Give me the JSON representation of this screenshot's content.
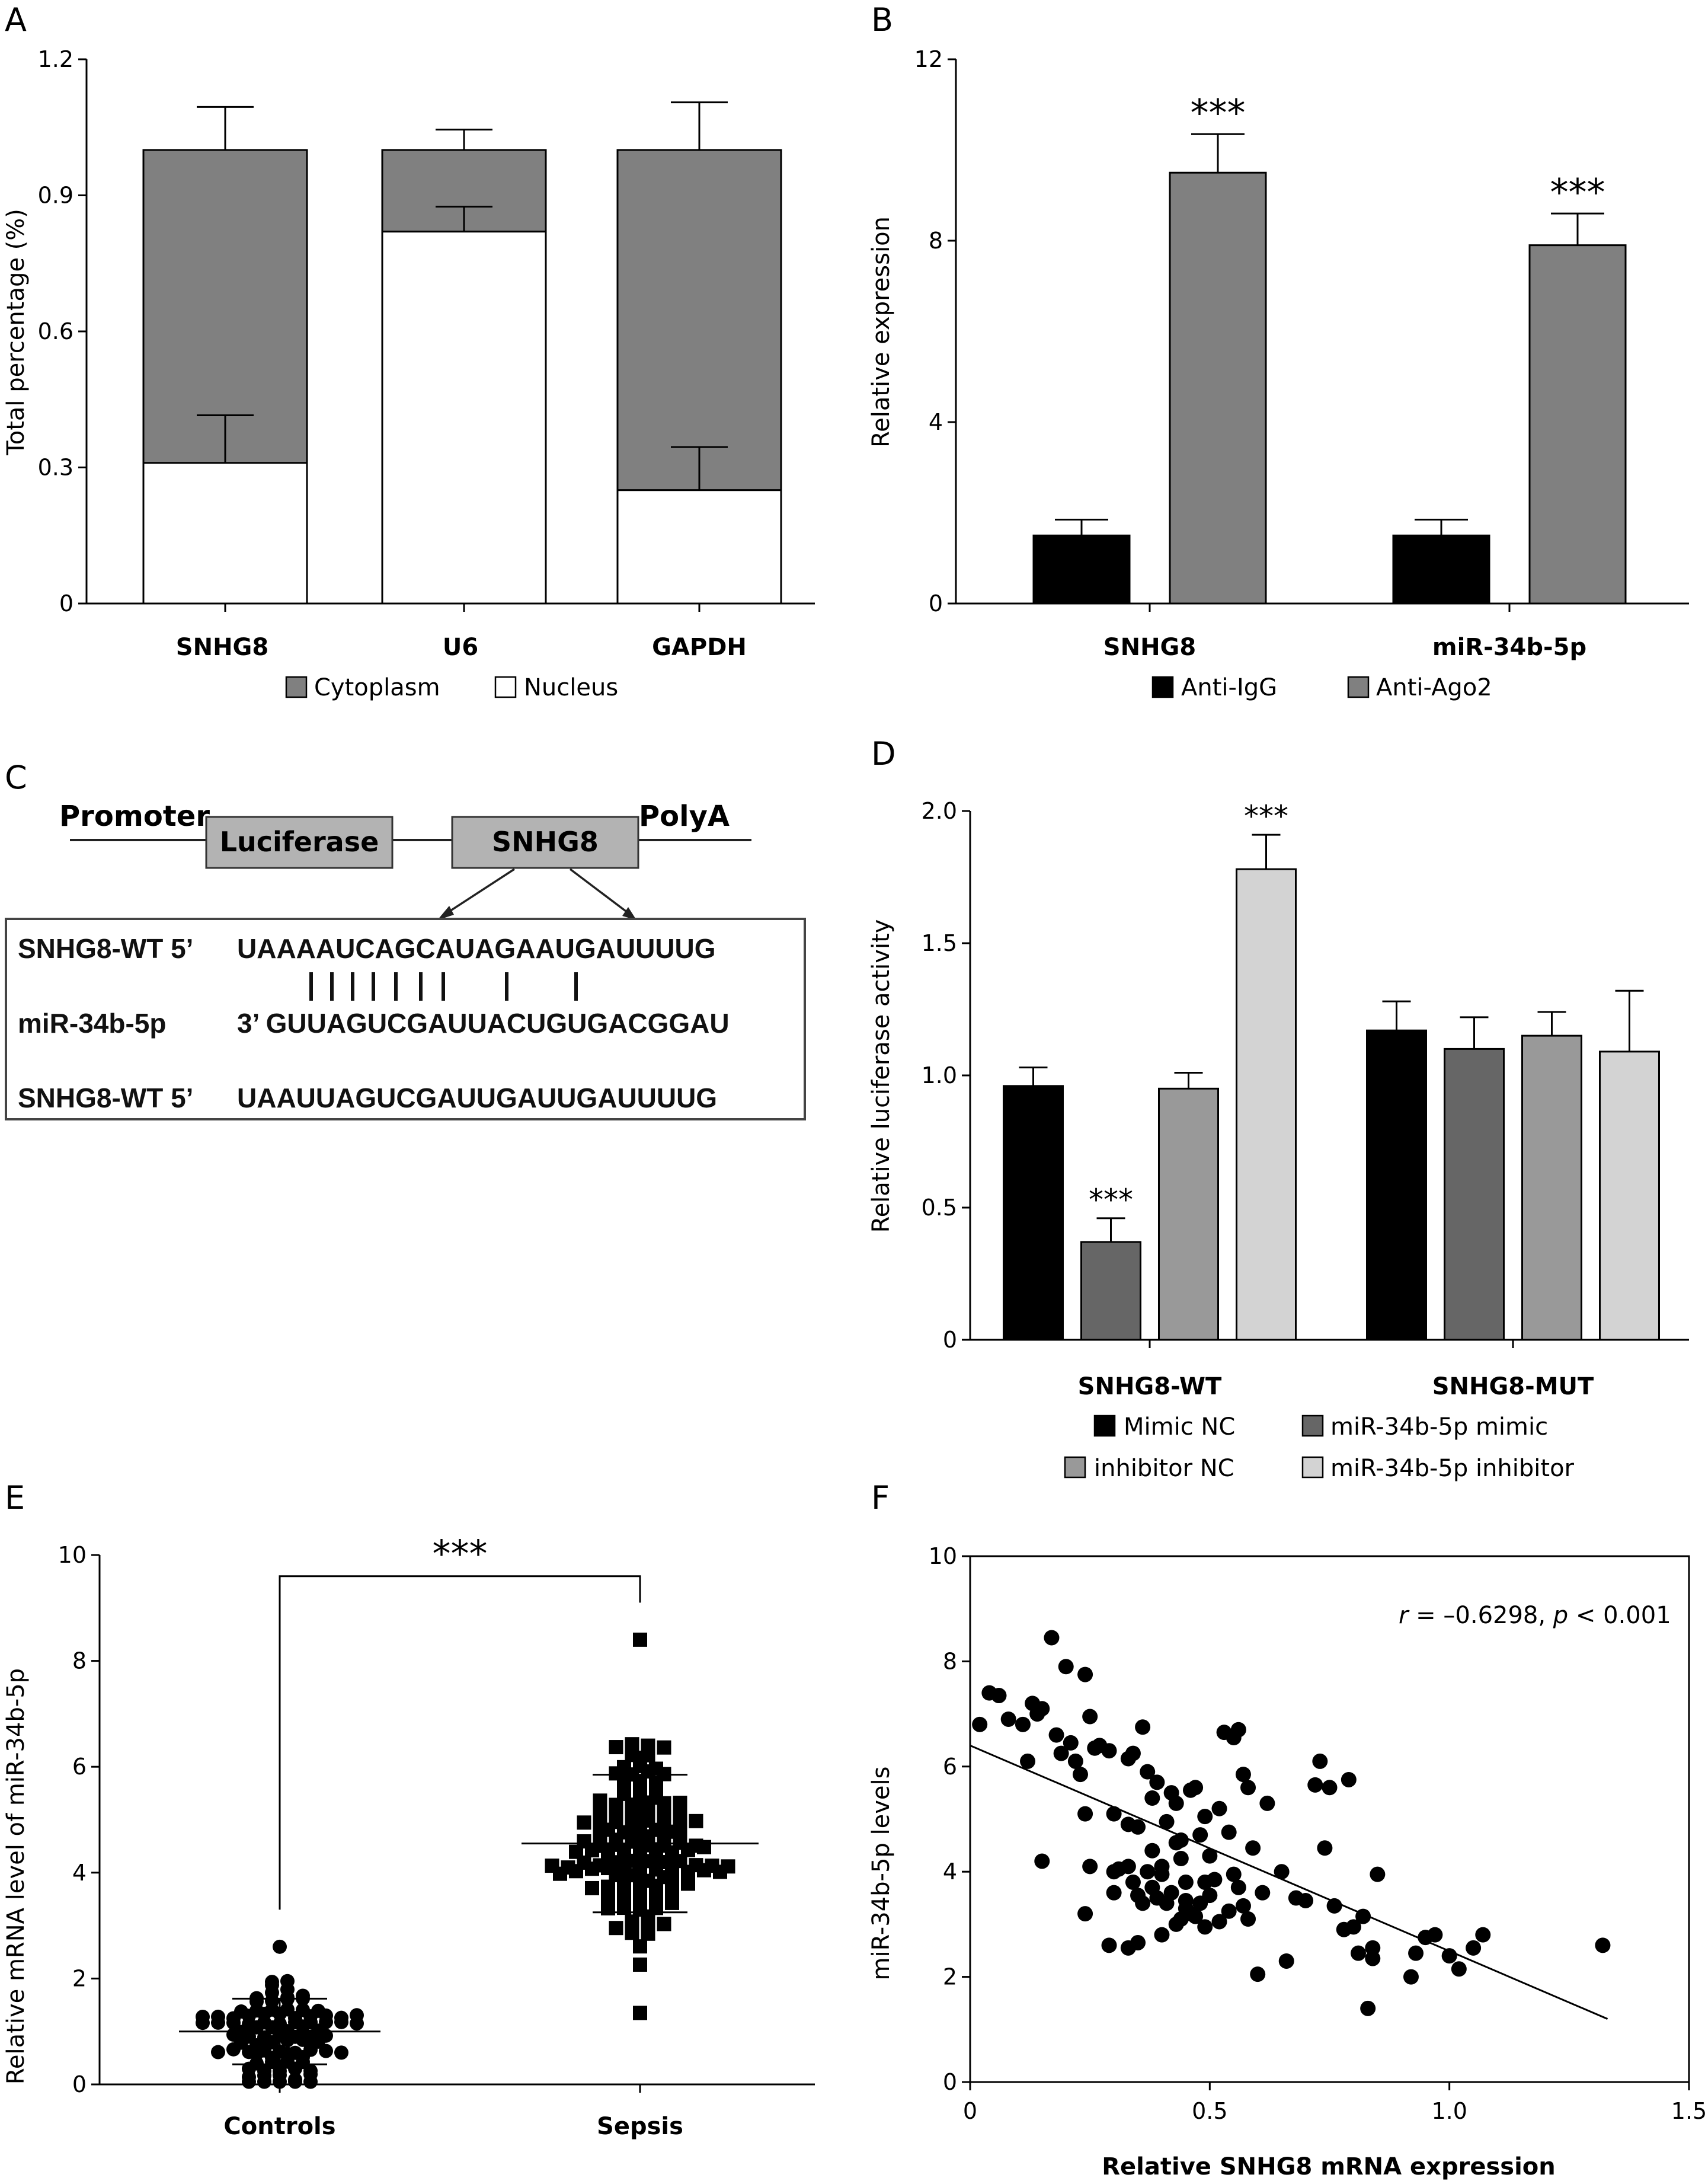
{
  "chart_data": [
    {
      "panel": "A",
      "type": "bar",
      "stacked": true,
      "categories": [
        "SNHG8",
        "U6",
        "GAPDH"
      ],
      "ylabel": "Total percentage (%)",
      "ylim": [
        0,
        1.2
      ],
      "yticks": [
        "0",
        "0.3",
        "0.6",
        "0.9",
        "1.2"
      ],
      "series": [
        {
          "name": "Cytoplasm",
          "color": "#808080",
          "values": [
            0.69,
            0.18,
            0.75
          ],
          "errors": [
            0.095,
            0.045,
            0.105
          ]
        },
        {
          "name": "Nucleus",
          "color": "#ffffff",
          "values": [
            0.31,
            0.82,
            0.25
          ],
          "errors": [
            0.105,
            0.055,
            0.095
          ]
        }
      ],
      "legend_position": "bottom"
    },
    {
      "panel": "B",
      "type": "bar",
      "categories": [
        "SNHG8",
        "miR-34b-5p"
      ],
      "ylabel": "Relative expression",
      "ylim": [
        0,
        12
      ],
      "yticks": [
        "0",
        "4",
        "8",
        "12"
      ],
      "series": [
        {
          "name": "Anti-IgG",
          "color": "#000000",
          "values": [
            1.5,
            1.5
          ],
          "errors": [
            0.35,
            0.35
          ]
        },
        {
          "name": "Anti-Ago2",
          "color": "#808080",
          "values": [
            9.5,
            7.9
          ],
          "errors": [
            0.85,
            0.7
          ]
        }
      ],
      "annotations": [
        "***",
        "***"
      ],
      "legend_position": "bottom"
    },
    {
      "panel": "D",
      "type": "bar",
      "categories": [
        "SNHG8-WT",
        "SNHG8-MUT"
      ],
      "ylabel": "Relative luciferase activity",
      "ylim": [
        0,
        2.0
      ],
      "yticks": [
        "0",
        "0.5",
        "1.0",
        "1.5",
        "2.0"
      ],
      "series": [
        {
          "name": "Mimic NC",
          "color": "#000000",
          "values": [
            0.96,
            1.17
          ],
          "errors": [
            0.07,
            0.11
          ]
        },
        {
          "name": "miR-34b-5p mimic",
          "color": "#666666",
          "values": [
            0.37,
            1.1
          ],
          "errors": [
            0.09,
            0.12
          ]
        },
        {
          "name": "inhibitor NC",
          "color": "#999999",
          "values": [
            0.95,
            1.15
          ],
          "errors": [
            0.06,
            0.09
          ]
        },
        {
          "name": "miR-34b-5p inhibitor",
          "color": "#d3d3d3",
          "values": [
            1.78,
            1.09
          ],
          "errors": [
            0.13,
            0.23
          ]
        }
      ],
      "annotations": [
        "***",
        "***"
      ],
      "legend_position": "bottom"
    },
    {
      "panel": "E",
      "type": "scatter",
      "categories": [
        "Controls",
        "Sepsis"
      ],
      "ylabel": "Relative mRNA level of miR-34b-5p",
      "ylim": [
        0,
        10
      ],
      "yticks": [
        "0",
        "2",
        "4",
        "6",
        "8",
        "10"
      ],
      "groups": [
        {
          "name": "Controls",
          "n": 90,
          "mean": 1.0,
          "sd": 0.62,
          "min": 0.05,
          "max": 2.6,
          "marker": "circle"
        },
        {
          "name": "Sepsis",
          "n": 140,
          "mean": 4.55,
          "sd": 1.3,
          "min": 1.35,
          "max": 8.4,
          "marker": "square"
        }
      ],
      "annotations": [
        "***"
      ]
    },
    {
      "panel": "F",
      "type": "scatter",
      "xlabel": "Relative SNHG8 mRNA expression",
      "ylabel": "miR-34b-5p levels",
      "xlim": [
        0,
        1.5
      ],
      "ylim": [
        0,
        10
      ],
      "xticks": [
        "0",
        "0.5",
        "1.0",
        "1.5"
      ],
      "yticks": [
        "0",
        "2",
        "4",
        "6",
        "8",
        "10"
      ],
      "points": [
        [
          0.02,
          6.8
        ],
        [
          0.04,
          7.4
        ],
        [
          0.06,
          7.35
        ],
        [
          0.08,
          6.9
        ],
        [
          0.11,
          6.8
        ],
        [
          0.12,
          6.1
        ],
        [
          0.13,
          7.2
        ],
        [
          0.14,
          7.0
        ],
        [
          0.15,
          7.1
        ],
        [
          0.17,
          8.45
        ],
        [
          0.18,
          6.6
        ],
        [
          0.19,
          6.25
        ],
        [
          0.2,
          7.9
        ],
        [
          0.21,
          6.45
        ],
        [
          0.22,
          6.1
        ],
        [
          0.23,
          5.85
        ],
        [
          0.24,
          7.75
        ],
        [
          0.25,
          6.95
        ],
        [
          0.26,
          6.35
        ],
        [
          0.27,
          6.4
        ],
        [
          0.29,
          6.3
        ],
        [
          0.3,
          5.1
        ],
        [
          0.24,
          5.1
        ],
        [
          0.33,
          6.15
        ],
        [
          0.34,
          6.25
        ],
        [
          0.35,
          4.85
        ],
        [
          0.36,
          6.75
        ],
        [
          0.37,
          5.9
        ],
        [
          0.38,
          5.4
        ],
        [
          0.39,
          5.7
        ],
        [
          0.4,
          4.1
        ],
        [
          0.41,
          4.95
        ],
        [
          0.42,
          5.5
        ],
        [
          0.43,
          5.3
        ],
        [
          0.44,
          4.6
        ],
        [
          0.45,
          3.8
        ],
        [
          0.46,
          5.55
        ],
        [
          0.47,
          5.6
        ],
        [
          0.48,
          4.7
        ],
        [
          0.49,
          5.05
        ],
        [
          0.5,
          4.3
        ],
        [
          0.52,
          5.2
        ],
        [
          0.53,
          6.65
        ],
        [
          0.54,
          4.75
        ],
        [
          0.55,
          6.55
        ],
        [
          0.56,
          6.7
        ],
        [
          0.57,
          5.85
        ],
        [
          0.58,
          5.6
        ],
        [
          0.59,
          4.45
        ],
        [
          0.3,
          4.0
        ],
        [
          0.31,
          4.05
        ],
        [
          0.33,
          4.1
        ],
        [
          0.34,
          3.8
        ],
        [
          0.35,
          3.55
        ],
        [
          0.36,
          3.4
        ],
        [
          0.37,
          4.0
        ],
        [
          0.38,
          3.7
        ],
        [
          0.39,
          3.5
        ],
        [
          0.4,
          3.95
        ],
        [
          0.41,
          3.4
        ],
        [
          0.42,
          3.6
        ],
        [
          0.43,
          3.0
        ],
        [
          0.44,
          3.1
        ],
        [
          0.45,
          3.3
        ],
        [
          0.46,
          3.2
        ],
        [
          0.47,
          3.15
        ],
        [
          0.48,
          3.4
        ],
        [
          0.49,
          3.8
        ],
        [
          0.5,
          3.55
        ],
        [
          0.52,
          3.05
        ],
        [
          0.54,
          3.25
        ],
        [
          0.56,
          3.7
        ],
        [
          0.57,
          3.35
        ],
        [
          0.58,
          3.1
        ],
        [
          0.6,
          2.05
        ],
        [
          0.62,
          5.3
        ],
        [
          0.65,
          4.0
        ],
        [
          0.68,
          3.5
        ],
        [
          0.7,
          3.45
        ],
        [
          0.72,
          5.65
        ],
        [
          0.73,
          6.1
        ],
        [
          0.74,
          4.45
        ],
        [
          0.75,
          5.6
        ],
        [
          0.76,
          3.35
        ],
        [
          0.78,
          2.9
        ],
        [
          0.79,
          5.75
        ],
        [
          0.8,
          2.95
        ],
        [
          0.81,
          2.45
        ],
        [
          0.82,
          3.15
        ],
        [
          0.83,
          1.4
        ],
        [
          0.84,
          2.55
        ],
        [
          0.85,
          3.95
        ],
        [
          0.84,
          2.35
        ],
        [
          0.93,
          2.45
        ],
        [
          0.95,
          2.75
        ],
        [
          0.97,
          2.8
        ],
        [
          1.0,
          2.4
        ],
        [
          1.02,
          2.15
        ],
        [
          1.05,
          2.55
        ],
        [
          1.07,
          2.8
        ],
        [
          0.29,
          2.6
        ],
        [
          0.33,
          2.55
        ],
        [
          0.35,
          2.65
        ],
        [
          0.4,
          2.8
        ],
        [
          0.24,
          3.2
        ],
        [
          0.15,
          4.2
        ],
        [
          0.25,
          4.1
        ],
        [
          0.3,
          3.6
        ],
        [
          0.45,
          3.45
        ],
        [
          0.49,
          2.95
        ],
        [
          0.66,
          2.3
        ],
        [
          1.32,
          2.6
        ],
        [
          0.92,
          2.0
        ],
        [
          0.44,
          4.25
        ],
        [
          0.38,
          4.4
        ],
        [
          0.51,
          3.85
        ],
        [
          0.43,
          4.55
        ],
        [
          0.33,
          4.9
        ],
        [
          0.55,
          3.95
        ],
        [
          0.61,
          3.6
        ]
      ],
      "fit_line": {
        "x": [
          0,
          1.33
        ],
        "y": [
          6.4,
          1.2
        ]
      },
      "annotation_text": {
        "r": "r",
        "r_value": " = –0.6298, ",
        "p": "p",
        "p_value": " < 0.001"
      }
    }
  ],
  "panels": {
    "A": {
      "letter": "A",
      "xticks": [
        "SNHG8",
        "U6",
        "GAPDH"
      ],
      "legend": [
        "Cytoplasm",
        "Nucleus"
      ]
    },
    "B": {
      "letter": "B",
      "xticks": [
        "SNHG8",
        "miR-34b-5p"
      ],
      "legend": [
        "Anti-IgG",
        "Anti-Ago2"
      ]
    },
    "C": {
      "letter": "C",
      "promoter": "Promoter",
      "luciferase": "Luciferase",
      "snhg8": "SNHG8",
      "polya": "PolyA",
      "row1_label": "SNHG8-WT 5’",
      "row1_seq": "UAAAAUCAGCAUAGAAUGAUUUUG",
      "row2_label": "miR-34b-5p",
      "row2_seq": "3’ GUUAGUCGAUUACUGUGACGGAU",
      "row3_label": "SNHG8-WT 5’",
      "row3_seq": "UAAUUAGUCGAUUGAUUGAUUUUG"
    },
    "D": {
      "letter": "D",
      "xticks": [
        "SNHG8-WT",
        "SNHG8-MUT"
      ],
      "legend": [
        "Mimic NC",
        "miR-34b-5p mimic",
        "inhibitor NC",
        "miR-34b-5p inhibitor"
      ]
    },
    "E": {
      "letter": "E",
      "xticks": [
        "Controls",
        "Sepsis"
      ]
    },
    "F": {
      "letter": "F"
    }
  }
}
